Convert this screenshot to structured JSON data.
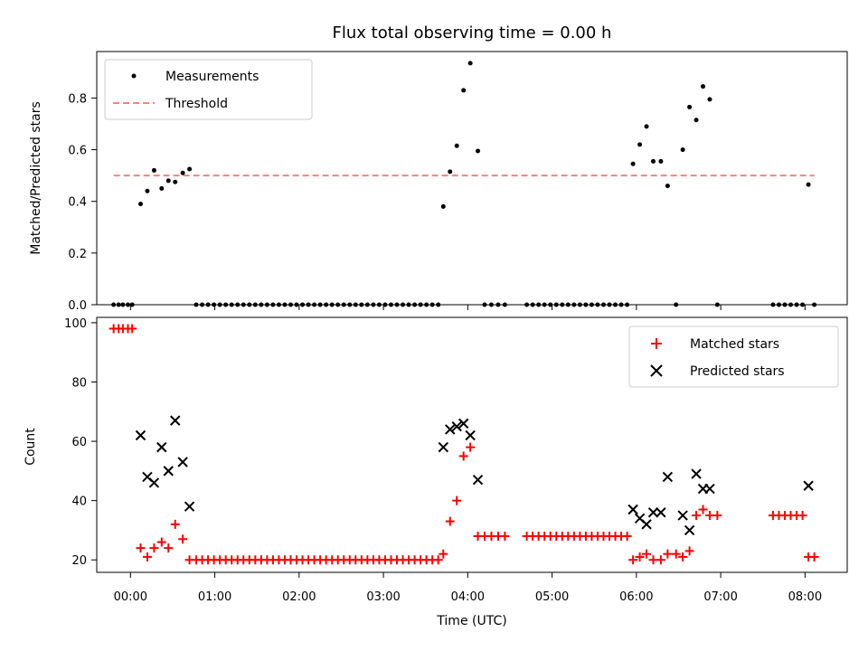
{
  "chart_data": [
    {
      "type": "scatter",
      "title": "Flux total observing time = 0.00 h",
      "xlabel": "",
      "ylabel": "Matched/Predicted stars",
      "xlim": [
        -0.4,
        8.5
      ],
      "ylim": [
        0,
        0.98
      ],
      "yticks": [
        "0.0",
        "0.2",
        "0.4",
        "0.6",
        "0.8"
      ],
      "legend_position": "upper-left",
      "series": [
        {
          "name": "Measurements",
          "kind": "scatter",
          "color": "#000000",
          "points": [
            [
              -0.2,
              0
            ],
            [
              -0.14,
              0
            ],
            [
              -0.09,
              0
            ],
            [
              -0.03,
              0
            ],
            [
              0.02,
              0
            ],
            [
              0.12,
              0.39
            ],
            [
              0.2,
              0.44
            ],
            [
              0.28,
              0.52
            ],
            [
              0.37,
              0.45
            ],
            [
              0.45,
              0.48
            ],
            [
              0.53,
              0.475
            ],
            [
              0.62,
              0.51
            ],
            [
              0.7,
              0.525
            ],
            [
              0.78,
              0
            ],
            [
              0.85,
              0
            ],
            [
              0.92,
              0
            ],
            [
              0.99,
              0
            ],
            [
              1.06,
              0
            ],
            [
              1.13,
              0
            ],
            [
              1.2,
              0
            ],
            [
              1.27,
              0
            ],
            [
              1.34,
              0
            ],
            [
              1.41,
              0
            ],
            [
              1.48,
              0
            ],
            [
              1.55,
              0
            ],
            [
              1.62,
              0
            ],
            [
              1.69,
              0
            ],
            [
              1.76,
              0
            ],
            [
              1.83,
              0
            ],
            [
              1.9,
              0
            ],
            [
              1.97,
              0
            ],
            [
              2.04,
              0
            ],
            [
              2.11,
              0
            ],
            [
              2.18,
              0
            ],
            [
              2.25,
              0
            ],
            [
              2.32,
              0
            ],
            [
              2.39,
              0
            ],
            [
              2.46,
              0
            ],
            [
              2.53,
              0
            ],
            [
              2.6,
              0
            ],
            [
              2.67,
              0
            ],
            [
              2.74,
              0
            ],
            [
              2.81,
              0
            ],
            [
              2.88,
              0
            ],
            [
              2.95,
              0
            ],
            [
              3.02,
              0
            ],
            [
              3.09,
              0
            ],
            [
              3.16,
              0
            ],
            [
              3.23,
              0
            ],
            [
              3.3,
              0
            ],
            [
              3.37,
              0
            ],
            [
              3.44,
              0
            ],
            [
              3.51,
              0
            ],
            [
              3.58,
              0
            ],
            [
              3.65,
              0
            ],
            [
              3.71,
              0.38
            ],
            [
              3.79,
              0.515
            ],
            [
              3.87,
              0.615
            ],
            [
              3.95,
              0.83
            ],
            [
              4.03,
              0.935
            ],
            [
              4.12,
              0.595
            ],
            [
              4.2,
              0
            ],
            [
              4.28,
              0
            ],
            [
              4.36,
              0
            ],
            [
              4.44,
              0
            ],
            [
              4.7,
              0
            ],
            [
              4.77,
              0
            ],
            [
              4.84,
              0
            ],
            [
              4.91,
              0
            ],
            [
              4.98,
              0
            ],
            [
              5.05,
              0
            ],
            [
              5.12,
              0
            ],
            [
              5.19,
              0
            ],
            [
              5.26,
              0
            ],
            [
              5.33,
              0
            ],
            [
              5.4,
              0
            ],
            [
              5.47,
              0
            ],
            [
              5.54,
              0
            ],
            [
              5.61,
              0
            ],
            [
              5.68,
              0
            ],
            [
              5.75,
              0
            ],
            [
              5.82,
              0
            ],
            [
              5.89,
              0
            ],
            [
              5.96,
              0.545
            ],
            [
              6.04,
              0.62
            ],
            [
              6.12,
              0.69
            ],
            [
              6.2,
              0.555
            ],
            [
              6.29,
              0.555
            ],
            [
              6.37,
              0.46
            ],
            [
              6.47,
              0
            ],
            [
              6.55,
              0.6
            ],
            [
              6.63,
              0.765
            ],
            [
              6.71,
              0.715
            ],
            [
              6.79,
              0.845
            ],
            [
              6.87,
              0.795
            ],
            [
              6.96,
              0
            ],
            [
              7.62,
              0
            ],
            [
              7.69,
              0
            ],
            [
              7.76,
              0
            ],
            [
              7.83,
              0
            ],
            [
              7.9,
              0
            ],
            [
              7.97,
              0
            ],
            [
              8.04,
              0.465
            ],
            [
              8.11,
              0
            ]
          ]
        },
        {
          "name": "Threshold",
          "kind": "line",
          "style": "dashed",
          "color": "#ff8080",
          "points": [
            [
              -0.2,
              0.5
            ],
            [
              8.11,
              0.5
            ]
          ]
        }
      ]
    },
    {
      "type": "scatter",
      "title": "",
      "xlabel": "Time (UTC)",
      "ylabel": "Count",
      "xlim": [
        -0.4,
        8.5
      ],
      "ylim": [
        15.8,
        101.8
      ],
      "xticks": [
        {
          "v": 0,
          "label": "00:00"
        },
        {
          "v": 1,
          "label": "01:00"
        },
        {
          "v": 2,
          "label": "02:00"
        },
        {
          "v": 3,
          "label": "03:00"
        },
        {
          "v": 4,
          "label": "04:00"
        },
        {
          "v": 5,
          "label": "05:00"
        },
        {
          "v": 6,
          "label": "06:00"
        },
        {
          "v": 7,
          "label": "07:00"
        },
        {
          "v": 8,
          "label": "08:00"
        }
      ],
      "yticks": [
        "20",
        "40",
        "60",
        "80",
        "100"
      ],
      "legend_position": "upper-right",
      "series": [
        {
          "name": "Matched stars",
          "marker": "plus",
          "color": "#ff0000",
          "points": [
            [
              -0.2,
              98
            ],
            [
              -0.14,
              98
            ],
            [
              -0.09,
              98
            ],
            [
              -0.03,
              98
            ],
            [
              0.02,
              98
            ],
            [
              0.12,
              24
            ],
            [
              0.2,
              21
            ],
            [
              0.28,
              24
            ],
            [
              0.37,
              26
            ],
            [
              0.45,
              24
            ],
            [
              0.53,
              32
            ],
            [
              0.62,
              27
            ],
            [
              0.7,
              20
            ],
            [
              0.78,
              20
            ],
            [
              0.85,
              20
            ],
            [
              0.92,
              20
            ],
            [
              0.99,
              20
            ],
            [
              1.06,
              20
            ],
            [
              1.13,
              20
            ],
            [
              1.2,
              20
            ],
            [
              1.27,
              20
            ],
            [
              1.34,
              20
            ],
            [
              1.41,
              20
            ],
            [
              1.48,
              20
            ],
            [
              1.55,
              20
            ],
            [
              1.62,
              20
            ],
            [
              1.69,
              20
            ],
            [
              1.76,
              20
            ],
            [
              1.83,
              20
            ],
            [
              1.9,
              20
            ],
            [
              1.97,
              20
            ],
            [
              2.04,
              20
            ],
            [
              2.11,
              20
            ],
            [
              2.18,
              20
            ],
            [
              2.25,
              20
            ],
            [
              2.32,
              20
            ],
            [
              2.39,
              20
            ],
            [
              2.46,
              20
            ],
            [
              2.53,
              20
            ],
            [
              2.6,
              20
            ],
            [
              2.67,
              20
            ],
            [
              2.74,
              20
            ],
            [
              2.81,
              20
            ],
            [
              2.88,
              20
            ],
            [
              2.95,
              20
            ],
            [
              3.02,
              20
            ],
            [
              3.09,
              20
            ],
            [
              3.16,
              20
            ],
            [
              3.23,
              20
            ],
            [
              3.3,
              20
            ],
            [
              3.37,
              20
            ],
            [
              3.44,
              20
            ],
            [
              3.51,
              20
            ],
            [
              3.58,
              20
            ],
            [
              3.65,
              20
            ],
            [
              3.71,
              22
            ],
            [
              3.79,
              33
            ],
            [
              3.87,
              40
            ],
            [
              3.95,
              55
            ],
            [
              4.03,
              58
            ],
            [
              4.12,
              28
            ],
            [
              4.2,
              28
            ],
            [
              4.28,
              28
            ],
            [
              4.36,
              28
            ],
            [
              4.44,
              28
            ],
            [
              4.7,
              28
            ],
            [
              4.77,
              28
            ],
            [
              4.84,
              28
            ],
            [
              4.91,
              28
            ],
            [
              4.98,
              28
            ],
            [
              5.05,
              28
            ],
            [
              5.12,
              28
            ],
            [
              5.19,
              28
            ],
            [
              5.26,
              28
            ],
            [
              5.33,
              28
            ],
            [
              5.4,
              28
            ],
            [
              5.47,
              28
            ],
            [
              5.54,
              28
            ],
            [
              5.61,
              28
            ],
            [
              5.68,
              28
            ],
            [
              5.75,
              28
            ],
            [
              5.82,
              28
            ],
            [
              5.89,
              28
            ],
            [
              5.96,
              20
            ],
            [
              6.04,
              21
            ],
            [
              6.12,
              22
            ],
            [
              6.2,
              20
            ],
            [
              6.29,
              20
            ],
            [
              6.37,
              22
            ],
            [
              6.47,
              22
            ],
            [
              6.55,
              21
            ],
            [
              6.63,
              23
            ],
            [
              6.71,
              35
            ],
            [
              6.79,
              37
            ],
            [
              6.87,
              35
            ],
            [
              6.96,
              35
            ],
            [
              7.62,
              35
            ],
            [
              7.69,
              35
            ],
            [
              7.76,
              35
            ],
            [
              7.83,
              35
            ],
            [
              7.9,
              35
            ],
            [
              7.97,
              35
            ],
            [
              8.04,
              21
            ],
            [
              8.11,
              21
            ]
          ]
        },
        {
          "name": "Predicted stars",
          "marker": "x",
          "color": "#000000",
          "points": [
            [
              0.12,
              62
            ],
            [
              0.2,
              48
            ],
            [
              0.28,
              46
            ],
            [
              0.37,
              58
            ],
            [
              0.45,
              50
            ],
            [
              0.53,
              67
            ],
            [
              0.62,
              53
            ],
            [
              0.7,
              38
            ],
            [
              3.71,
              58
            ],
            [
              3.79,
              64
            ],
            [
              3.87,
              65
            ],
            [
              3.95,
              66
            ],
            [
              4.03,
              62
            ],
            [
              4.12,
              47
            ],
            [
              5.96,
              37
            ],
            [
              6.04,
              34
            ],
            [
              6.12,
              32
            ],
            [
              6.2,
              36
            ],
            [
              6.29,
              36
            ],
            [
              6.37,
              48
            ],
            [
              6.55,
              35
            ],
            [
              6.63,
              30
            ],
            [
              6.71,
              49
            ],
            [
              6.79,
              44
            ],
            [
              6.87,
              44
            ],
            [
              8.04,
              45
            ]
          ]
        }
      ]
    }
  ]
}
